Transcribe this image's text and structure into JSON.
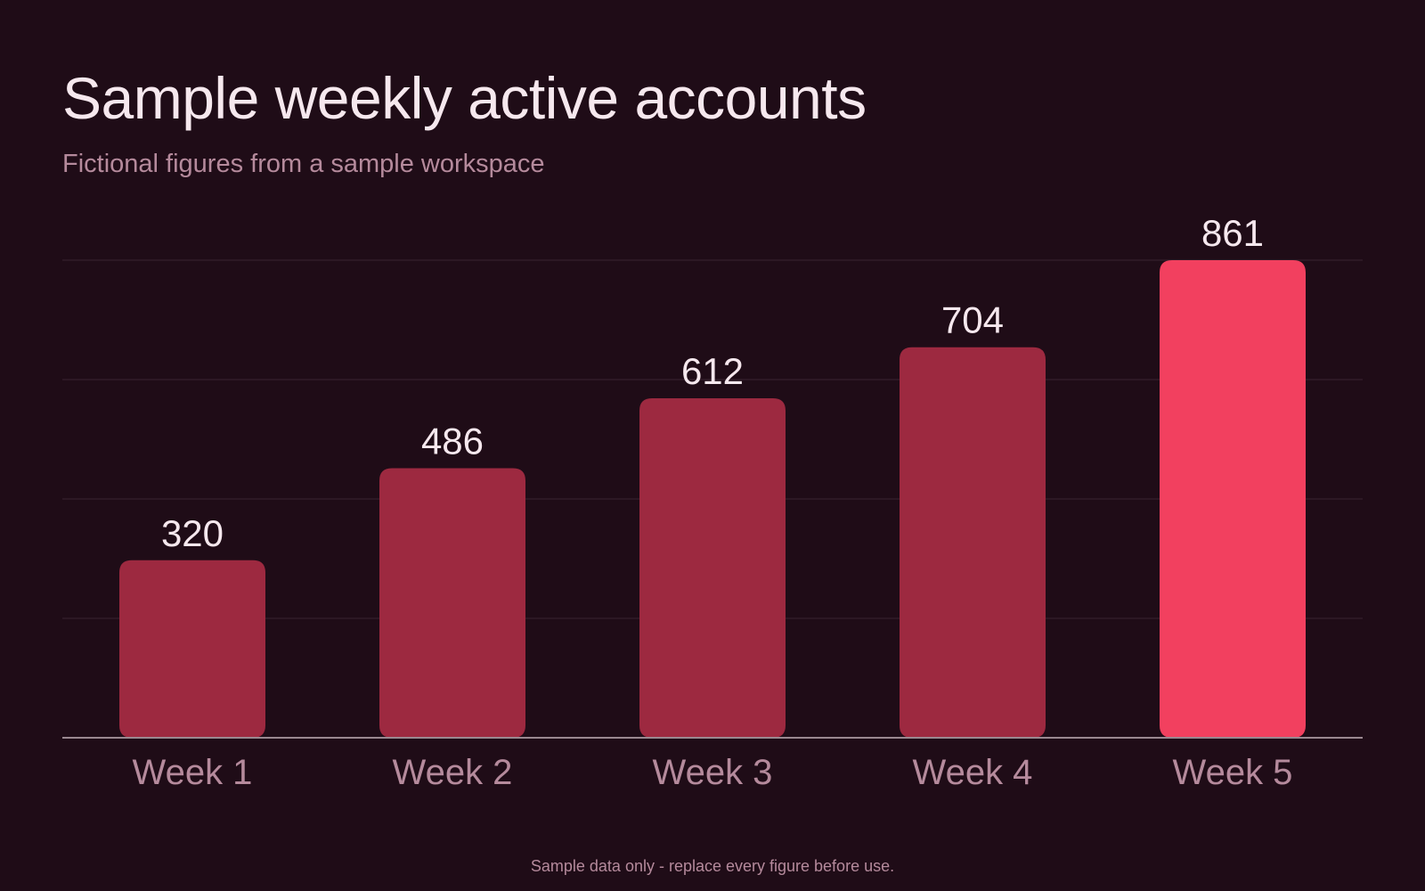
{
  "chart_data": {
    "type": "bar",
    "title": "Sample weekly active accounts",
    "subtitle": "Fictional figures from a sample workspace",
    "categories": [
      "Week 1",
      "Week 2",
      "Week 3",
      "Week 4",
      "Week 5"
    ],
    "values": [
      320,
      486,
      612,
      704,
      861
    ],
    "ylim": [
      0,
      861
    ],
    "grid": true,
    "highlight_index": 4,
    "colors": {
      "background": "#1f0c17",
      "bar": "#9d2940",
      "highlight": "#f2405f",
      "grid": "#3a2530",
      "axis": "#9a8890",
      "value_text": "#f6e8ee",
      "category_text": "#b58a9c"
    }
  },
  "footnote": "Sample data only - replace every figure before use."
}
